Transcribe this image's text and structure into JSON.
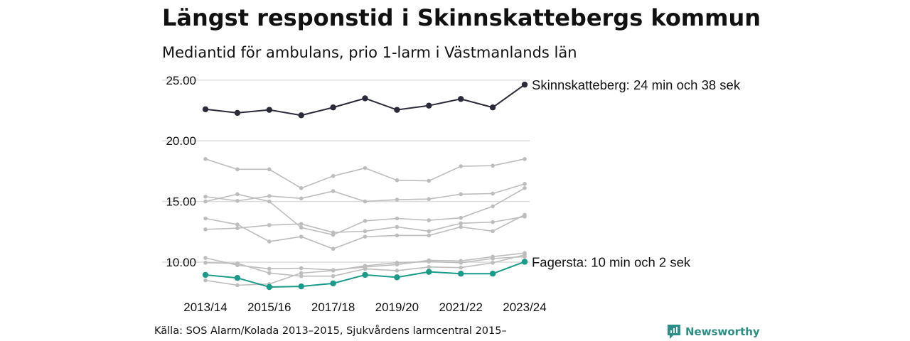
{
  "header": {
    "title": "Längst responstid i Skinnskattebergs kommun",
    "subtitle": "Mediantid för ambulans, prio 1-larm i Västmanlands län"
  },
  "footer": {
    "source": "Källa: SOS Alarm/Kolada 2013–2015, Sjukvårdens larmcentral 2015–",
    "brand": "Newsworthy"
  },
  "colors": {
    "highlight": "#2a2a3a",
    "low_highlight": "#1a9a88",
    "others": "#bdbdbd",
    "grid": "#dcdcdc"
  },
  "chart_data": {
    "type": "line",
    "x": [
      "2013/14",
      "2014/15",
      "2015/16",
      "2016/17",
      "2017/18",
      "2018/19",
      "2019/20",
      "2020/21",
      "2021/22",
      "2022/23",
      "2023/24"
    ],
    "x_tick_labels": [
      "2013/14",
      "2015/16",
      "2017/18",
      "2019/20",
      "2021/22",
      "2023/24"
    ],
    "y_tick_labels": [
      "25.00",
      "20.00",
      "15.00",
      "10.00"
    ],
    "ylim": [
      8,
      25
    ],
    "grid": true,
    "legend": "none",
    "series": [
      {
        "name": "Skinnskatteberg",
        "role": "highlight",
        "end_label": "Skinnskatteberg: 24 min och 38 sek",
        "values": [
          22.6,
          22.3,
          22.55,
          22.1,
          22.75,
          23.5,
          22.55,
          22.9,
          23.45,
          22.75,
          24.63
        ]
      },
      {
        "name": "Fagersta",
        "role": "low",
        "end_label": "Fagersta: 10 min och 2 sek",
        "values": [
          8.95,
          8.7,
          7.95,
          8.0,
          8.25,
          8.95,
          8.75,
          9.2,
          9.05,
          9.05,
          10.03
        ]
      },
      {
        "values": [
          18.5,
          17.65,
          17.65,
          16.1,
          17.1,
          17.75,
          16.75,
          16.7,
          17.9,
          17.95,
          18.5
        ]
      },
      {
        "values": [
          15.4,
          15.05,
          15.45,
          15.25,
          15.85,
          15.0,
          15.15,
          15.2,
          15.6,
          15.65,
          16.45
        ]
      },
      {
        "values": [
          15.0,
          15.6,
          15.0,
          12.85,
          12.25,
          13.4,
          13.6,
          13.45,
          13.65,
          14.6,
          16.1
        ]
      },
      {
        "values": [
          13.6,
          13.1,
          11.7,
          12.1,
          11.1,
          12.1,
          12.2,
          12.2,
          12.9,
          12.55,
          13.9
        ]
      },
      {
        "values": [
          12.7,
          12.8,
          13.05,
          13.15,
          12.45,
          12.55,
          12.9,
          12.55,
          13.2,
          13.3,
          13.75
        ]
      },
      {
        "values": [
          10.35,
          9.75,
          9.45,
          9.5,
          9.35,
          9.6,
          9.8,
          10.15,
          10.1,
          10.45,
          10.75
        ]
      },
      {
        "values": [
          9.95,
          9.9,
          9.1,
          8.85,
          8.85,
          9.45,
          9.3,
          9.6,
          9.55,
          9.95,
          10.6
        ]
      },
      {
        "values": [
          8.5,
          8.1,
          8.2,
          9.1,
          9.3,
          9.7,
          9.95,
          10.05,
          9.95,
          10.3,
          10.45
        ]
      }
    ]
  }
}
